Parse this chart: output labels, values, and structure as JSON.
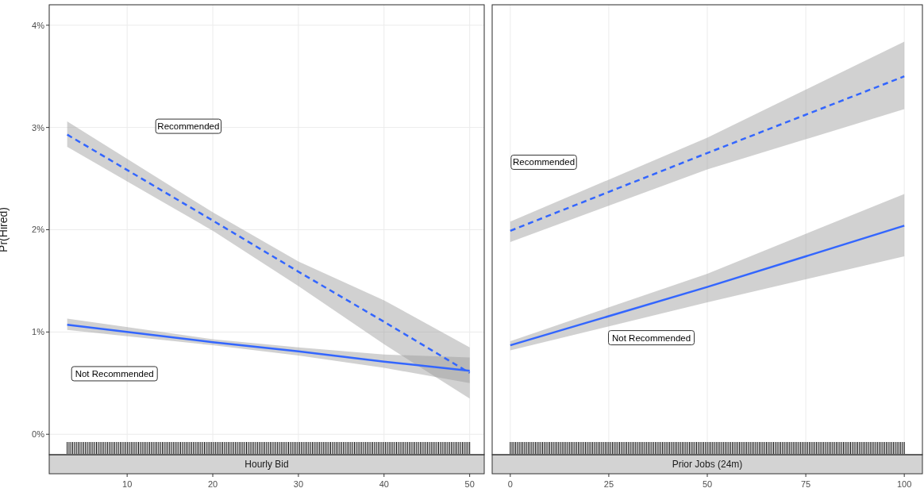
{
  "chart_data": [
    {
      "type": "line",
      "xlabel": "Hourly Bid",
      "ylabel": "Pr(Hired)",
      "x": [
        3,
        20,
        30,
        40,
        50
      ],
      "xlim": [
        0.9,
        51.7
      ],
      "xticks": [
        10,
        20,
        30,
        40,
        50
      ],
      "ylim": [
        -0.2,
        4.2
      ],
      "yticks": [
        {
          "value": 0,
          "label": "0%"
        },
        {
          "value": 1,
          "label": "1%"
        },
        {
          "value": 2,
          "label": "2%"
        },
        {
          "value": 3,
          "label": "3%"
        },
        {
          "value": 4,
          "label": "4%"
        }
      ],
      "grid": true,
      "legend": false,
      "series": [
        {
          "color": "#3366ff",
          "line_style": "dashed",
          "values": [
            2.93,
            2.09,
            1.59,
            1.1,
            0.6
          ],
          "lower": [
            2.81,
            1.99,
            1.45,
            0.88,
            0.35
          ],
          "upper": [
            3.06,
            2.17,
            1.69,
            1.31,
            0.85
          ]
        },
        {
          "color": "#3366ff",
          "line_style": "solid",
          "values": [
            1.07,
            0.9,
            0.81,
            0.71,
            0.62
          ],
          "lower": [
            1.02,
            0.87,
            0.77,
            0.65,
            0.5
          ],
          "upper": [
            1.13,
            0.93,
            0.85,
            0.78,
            0.75
          ]
        }
      ],
      "annotations": [
        "Recommended",
        "Not Recommended"
      ]
    },
    {
      "type": "line",
      "xlabel": "Prior Jobs (24m)",
      "x": [
        0,
        50,
        100
      ],
      "xlim": [
        -4.6,
        104.6
      ],
      "xticks": [
        0,
        25,
        50,
        75,
        100
      ],
      "ylim": [
        -0.2,
        4.2
      ],
      "yticks": [
        {
          "value": 0,
          "label": null
        },
        {
          "value": 1,
          "label": null
        },
        {
          "value": 2,
          "label": null
        },
        {
          "value": 3,
          "label": null
        },
        {
          "value": 4,
          "label": null
        }
      ],
      "grid": true,
      "legend": false,
      "tick_labels": "x",
      "series": [
        {
          "color": "#3366ff",
          "line_style": "dashed",
          "values": [
            1.99,
            2.75,
            3.5
          ],
          "lower": [
            1.88,
            2.59,
            3.18
          ],
          "upper": [
            2.08,
            2.9,
            3.84
          ]
        },
        {
          "color": "#3366ff",
          "line_style": "solid",
          "values": [
            0.87,
            1.44,
            2.04
          ],
          "lower": [
            0.82,
            1.29,
            1.74
          ],
          "upper": [
            0.91,
            1.57,
            2.35
          ]
        }
      ],
      "annotations": [
        "Recommended",
        "Not Recommended"
      ]
    }
  ]
}
